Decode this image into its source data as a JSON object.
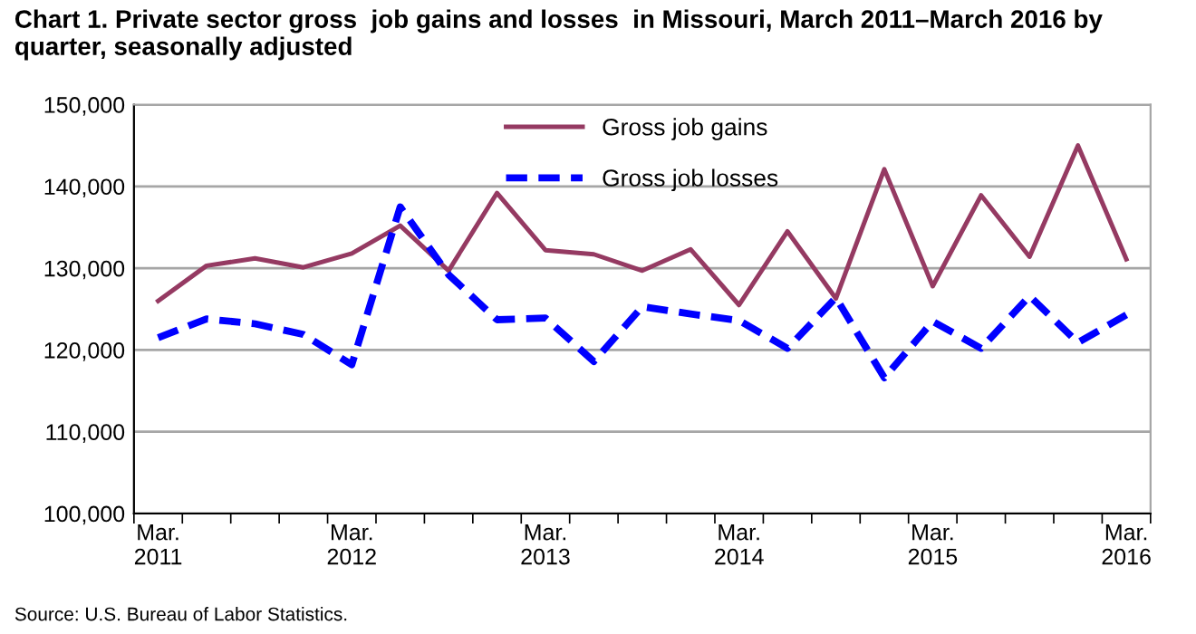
{
  "chart_data": {
    "type": "line",
    "title": "Chart 1. Private sector gross  job gains and losses  in Missouri, March 2011–March 2016 by quarter, seasonally adjusted",
    "categories": [
      "Mar.\n2011",
      null,
      null,
      null,
      "Mar.\n2012",
      null,
      null,
      null,
      "Mar.\n2013",
      null,
      null,
      null,
      "Mar.\n2014",
      null,
      null,
      null,
      "Mar.\n2015",
      null,
      null,
      null,
      "Mar.\n2016"
    ],
    "series": [
      {
        "name": "Gross job gains",
        "color": "#953a62",
        "line_style": "solid",
        "values": [
          126000,
          130300,
          131200,
          130100,
          131800,
          135200,
          129700,
          139200,
          132200,
          131700,
          129700,
          132300,
          125500,
          134500,
          126300,
          142100,
          127800,
          138900,
          131400,
          145000,
          131100
        ]
      },
      {
        "name": "Gross job losses",
        "color": "#0000ff",
        "line_style": "dashed",
        "values": [
          121500,
          123800,
          123200,
          121900,
          118200,
          137500,
          129200,
          123700,
          123900,
          118600,
          125300,
          124400,
          123600,
          120200,
          126400,
          116600,
          123500,
          120200,
          126600,
          120900,
          124300
        ]
      }
    ],
    "ylim": [
      100000,
      150000
    ],
    "yticks": [
      {
        "value": 100000,
        "label": "100,000"
      },
      {
        "value": 110000,
        "label": "110,000"
      },
      {
        "value": 120000,
        "label": "120,000"
      },
      {
        "value": 130000,
        "label": "130,000"
      },
      {
        "value": 140000,
        "label": "140,000"
      },
      {
        "value": 150000,
        "label": "150,000"
      }
    ],
    "grid": "y",
    "legend": "top",
    "marker": "none",
    "annotations": [
      "Source: U.S. Bureau of Labor Statistics."
    ]
  }
}
